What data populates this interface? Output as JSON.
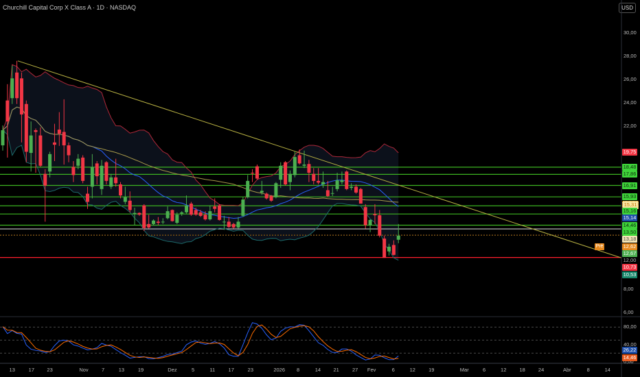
{
  "header": {
    "title": "Churchill Capital Corp X Class A · 1D · NASDAQ",
    "currency": "USD"
  },
  "price_axis": {
    "ticks": [
      {
        "label": "30,00",
        "price": 30
      },
      {
        "label": "28,00",
        "price": 28
      },
      {
        "label": "26,00",
        "price": 26
      },
      {
        "label": "24,00",
        "price": 24
      },
      {
        "label": "22,00",
        "price": 22
      },
      {
        "label": "8,00",
        "price": 8
      },
      {
        "label": "6,00",
        "price": 6
      }
    ],
    "labels": [
      {
        "text": "19,75",
        "price": 19.75,
        "bg": "#f23645",
        "fg": "#ffffff"
      },
      {
        "text": "18,48",
        "price": 18.48,
        "bg": "#3fd33a",
        "fg": "#0b2a0b"
      },
      {
        "text": "17,86",
        "price": 17.86,
        "bg": "#3fd33a",
        "fg": "#0b2a0b"
      },
      {
        "text": "16,91",
        "price": 16.91,
        "bg": "#3fd33a",
        "fg": "#0b2a0b"
      },
      {
        "text": "15,93",
        "price": 15.93,
        "bg": "#3fd33a",
        "fg": "#0b2a0b"
      },
      {
        "text": "15,31",
        "price": 15.31,
        "bg": "#fbe7a6",
        "fg": "#c27800"
      },
      {
        "text": "15,16",
        "price": 15.16,
        "bg": "#3fd33a",
        "fg": "#0b2a0b"
      },
      {
        "text": "15,14",
        "price": 15.14,
        "bg": "#1e4ea8",
        "fg": "#ffffff"
      },
      {
        "text": "14,46",
        "price": 14.46,
        "bg": "#3fd33a",
        "fg": "#0b2a0b"
      },
      {
        "text": "13,50",
        "price": 13.5,
        "bg": "#3fd33a",
        "fg": "#0b2a0b"
      },
      {
        "text": "13,18",
        "price": 13.18,
        "bg": "#f3e3b5",
        "fg": "#444444"
      },
      {
        "text": "12,62",
        "price": 12.62,
        "bg": "#e6891e",
        "fg": "#ffffff"
      },
      {
        "text": "12,67",
        "price": 12.67,
        "bg": "#4caf50",
        "fg": "#ffffff"
      },
      {
        "text": "12,00",
        "price": 12.0,
        "bg": "transparent",
        "fg": "#bbbbbb"
      },
      {
        "text": "10,73",
        "price": 10.73,
        "bg": "#f23645",
        "fg": "#ffffff"
      },
      {
        "text": "10,53",
        "price": 10.53,
        "bg": "#16866a",
        "fg": "#ffffff"
      }
    ],
    "premarket_tag": "Pré"
  },
  "oscillator": {
    "ticks": [
      {
        "label": "80,00",
        "value": 80
      },
      {
        "label": "40,00",
        "value": 40
      },
      {
        "label": "0,00",
        "value": 0
      }
    ],
    "k_label": "26,22",
    "d_label": "14,46",
    "k_value": 26.22,
    "d_value": 14.46,
    "k_color": "#2962ff",
    "d_color": "#ff6d00"
  },
  "colors": {
    "up": "#4caf50",
    "down": "#f23645",
    "level": "#3cb521",
    "support": "#e0e0e0",
    "stop": "#ff1e2d",
    "trend": "#b9b243"
  },
  "chart_data": {
    "type": "candlestick",
    "title": "Churchill Capital Corp X Class A · 1D · NASDAQ",
    "ylim": [
      5,
      31
    ],
    "ohlc": [
      [
        20.35,
        22.06,
        19.9,
        21.65
      ],
      [
        24.2,
        25.6,
        19.3,
        22.4
      ],
      [
        24.4,
        27.2,
        23.9,
        26.1
      ],
      [
        26.6,
        27.6,
        23.9,
        24.4
      ],
      [
        26.1,
        26.6,
        20.6,
        23.0
      ],
      [
        23.9,
        24.2,
        18.9,
        19.8
      ],
      [
        19.7,
        22.4,
        18.1,
        21.2
      ],
      [
        21.65,
        21.8,
        18.0,
        21.5
      ],
      [
        21.2,
        21.9,
        18.5,
        18.6
      ],
      [
        17.9,
        18.3,
        13.8,
        16.9
      ],
      [
        18.1,
        19.8,
        17.6,
        19.6
      ],
      [
        20.6,
        22.2,
        19.0,
        20.4
      ],
      [
        21.7,
        23.2,
        20.3,
        21.35
      ],
      [
        21.5,
        24.3,
        18.7,
        20.35
      ],
      [
        20.35,
        20.6,
        18.9,
        19.5
      ],
      [
        18.5,
        19.0,
        17.2,
        17.8
      ],
      [
        18.6,
        19.6,
        18.3,
        19.2
      ],
      [
        19.3,
        19.5,
        17.1,
        17.3
      ],
      [
        16.2,
        16.8,
        14.9,
        15.5
      ],
      [
        16.8,
        19.6,
        15.8,
        18.5
      ],
      [
        18.8,
        19.0,
        17.0,
        17.7
      ],
      [
        16.6,
        19.1,
        16.1,
        18.6
      ],
      [
        18.9,
        19.0,
        17.0,
        17.3
      ],
      [
        16.8,
        17.9,
        16.6,
        17.6
      ],
      [
        17.6,
        19.2,
        16.8,
        17.1
      ],
      [
        17.0,
        17.2,
        15.8,
        16.05
      ],
      [
        15.5,
        16.8,
        15.3,
        15.9
      ],
      [
        15.6,
        16.4,
        14.6,
        14.8
      ],
      [
        14.45,
        15.0,
        13.5,
        14.55
      ],
      [
        14.55,
        14.6,
        14.3,
        14.4
      ],
      [
        15.2,
        15.3,
        13.0,
        13.25
      ],
      [
        13.6,
        14.4,
        13.2,
        13.3
      ],
      [
        13.6,
        14.0,
        13.5,
        13.9
      ],
      [
        13.8,
        14.2,
        13.5,
        13.7
      ],
      [
        13.75,
        14.1,
        13.6,
        13.8
      ],
      [
        14.1,
        15.1,
        14.0,
        14.7
      ],
      [
        14.8,
        14.85,
        13.8,
        13.85
      ],
      [
        13.7,
        14.6,
        13.6,
        14.4
      ],
      [
        14.5,
        14.7,
        14.3,
        14.6
      ],
      [
        14.6,
        16.05,
        14.5,
        15.2
      ],
      [
        15.35,
        15.5,
        14.3,
        14.4
      ],
      [
        14.8,
        15.0,
        14.3,
        14.4
      ],
      [
        14.6,
        14.8,
        14.2,
        14.3
      ],
      [
        14.4,
        14.7,
        13.9,
        14.0
      ],
      [
        14.0,
        15.2,
        13.9,
        14.7
      ],
      [
        15.1,
        15.8,
        14.6,
        14.9
      ],
      [
        15.2,
        15.3,
        13.9,
        13.95
      ],
      [
        13.75,
        14.3,
        13.1,
        13.8
      ],
      [
        13.8,
        14.2,
        13.25,
        13.35
      ],
      [
        13.6,
        13.7,
        13.2,
        13.3
      ],
      [
        13.3,
        14.2,
        13.2,
        13.8
      ],
      [
        14.3,
        15.9,
        14.2,
        15.7
      ],
      [
        15.9,
        17.8,
        15.8,
        17.3
      ],
      [
        18.0,
        18.3,
        17.2,
        17.95
      ],
      [
        18.55,
        18.7,
        17.4,
        17.5
      ],
      [
        16.3,
        17.3,
        16.1,
        16.45
      ],
      [
        16.2,
        16.3,
        15.7,
        15.8
      ],
      [
        16.0,
        16.1,
        15.5,
        15.6
      ],
      [
        15.9,
        17.2,
        15.8,
        17.1
      ],
      [
        17.4,
        18.9,
        16.7,
        18.6
      ],
      [
        18.9,
        19.0,
        16.9,
        17.0
      ],
      [
        17.2,
        18.2,
        16.5,
        17.9
      ],
      [
        17.8,
        19.8,
        17.6,
        19.35
      ],
      [
        19.5,
        20.0,
        18.7,
        18.8
      ],
      [
        18.6,
        19.9,
        18.4,
        18.7
      ],
      [
        18.75,
        19.1,
        17.2,
        18.0
      ],
      [
        17.9,
        18.4,
        17.0,
        17.3
      ],
      [
        17.3,
        18.4,
        17.0,
        17.15
      ],
      [
        17.0,
        18.1,
        16.7,
        17.2
      ],
      [
        16.5,
        17.3,
        15.9,
        16.0
      ],
      [
        16.2,
        16.8,
        16.0,
        16.25
      ],
      [
        16.6,
        18.0,
        16.4,
        17.35
      ],
      [
        17.2,
        18.1,
        17.0,
        17.35
      ],
      [
        18.1,
        18.2,
        16.5,
        16.6
      ],
      [
        16.7,
        17.1,
        16.5,
        16.8
      ],
      [
        16.8,
        17.0,
        16.2,
        16.3
      ],
      [
        16.6,
        16.7,
        15.4,
        15.35
      ],
      [
        15.05,
        15.3,
        13.2,
        13.5
      ],
      [
        13.5,
        14.0,
        12.9,
        13.95
      ],
      [
        14.45,
        15.3,
        13.6,
        14.35
      ],
      [
        14.35,
        14.8,
        12.45,
        12.6
      ],
      [
        12.35,
        12.6,
        10.7,
        10.7
      ],
      [
        11.25,
        11.9,
        10.9,
        11.65
      ],
      [
        11.8,
        12.2,
        10.9,
        10.95
      ],
      [
        12.25,
        13.6,
        11.95,
        12.6
      ]
    ],
    "levels": [
      {
        "price": 18.48,
        "kind": "level"
      },
      {
        "price": 17.86,
        "kind": "level"
      },
      {
        "price": 16.91,
        "kind": "level"
      },
      {
        "price": 15.93,
        "kind": "level"
      },
      {
        "price": 15.16,
        "kind": "level"
      },
      {
        "price": 14.46,
        "kind": "level"
      },
      {
        "price": 13.5,
        "kind": "level"
      },
      {
        "price": 13.18,
        "kind": "support"
      },
      {
        "price": 12.67,
        "kind": "prev"
      },
      {
        "price": 12.62,
        "kind": "pre"
      },
      {
        "price": 10.73,
        "kind": "stop"
      }
    ],
    "trendline": {
      "start": {
        "bar": 3.2,
        "price": 27.6
      },
      "end": {
        "bar": 131.3,
        "price": 10.7
      }
    },
    "indicators": {
      "bollinger_period": 20,
      "bollinger_mult": 2,
      "ma_period": 50,
      "stoch_period": 14
    },
    "x_ticks": [
      {
        "label": "13",
        "bar": 2
      },
      {
        "label": "17",
        "bar": 6.1
      },
      {
        "label": "23",
        "bar": 10
      },
      {
        "label": "Nov",
        "bar": 17.2
      },
      {
        "label": "7",
        "bar": 21.3
      },
      {
        "label": "13",
        "bar": 25.2
      },
      {
        "label": "19",
        "bar": 29.3
      },
      {
        "label": "Dez",
        "bar": 36
      },
      {
        "label": "5",
        "bar": 40.4
      },
      {
        "label": "11",
        "bar": 44.5
      },
      {
        "label": "17",
        "bar": 48.5
      },
      {
        "label": "23",
        "bar": 52.6
      },
      {
        "label": "2026",
        "bar": 58.7
      },
      {
        "label": "8",
        "bar": 62.7
      },
      {
        "label": "14",
        "bar": 66.9
      },
      {
        "label": "21",
        "bar": 70.8
      },
      {
        "label": "27",
        "bar": 74.8
      },
      {
        "label": "Fev",
        "bar": 78.3
      },
      {
        "label": "6",
        "bar": 82.9
      },
      {
        "label": "12",
        "bar": 87
      },
      {
        "label": "19",
        "bar": 91
      },
      {
        "label": "Mar",
        "bar": 98
      },
      {
        "label": "6",
        "bar": 102.2
      },
      {
        "label": "12",
        "bar": 106.3
      },
      {
        "label": "18",
        "bar": 110.3
      },
      {
        "label": "24",
        "bar": 114.3
      },
      {
        "label": "Abr",
        "bar": 119.8
      },
      {
        "label": "8",
        "bar": 124.3
      },
      {
        "label": "14",
        "bar": 128.4
      }
    ]
  }
}
